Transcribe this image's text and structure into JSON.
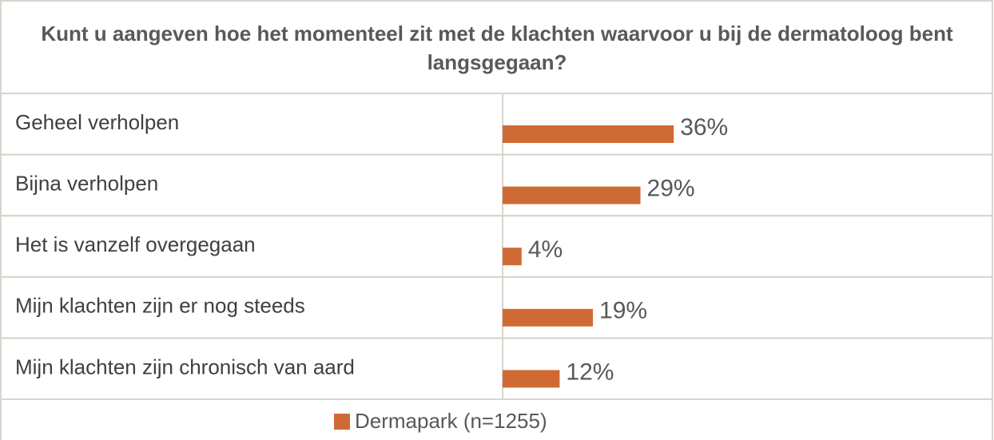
{
  "chart_data": {
    "type": "bar",
    "orientation": "horizontal",
    "title": "Kunt u aangeven hoe het momenteel zit met de klachten waarvoor u bij de dermatoloog bent langsgegaan?",
    "categories": [
      "Geheel verholpen",
      "Bijna verholpen",
      "Het is vanzelf overgegaan",
      "Mijn klachten zijn er nog steeds",
      "Mijn klachten zijn chronisch van aard"
    ],
    "series": [
      {
        "name": "Dermapark (n=1255)",
        "color": "#d06a35",
        "values": [
          36,
          29,
          4,
          19,
          12
        ],
        "value_labels": [
          "36%",
          "29%",
          "4%",
          "19%",
          "12%"
        ]
      }
    ]
  }
}
